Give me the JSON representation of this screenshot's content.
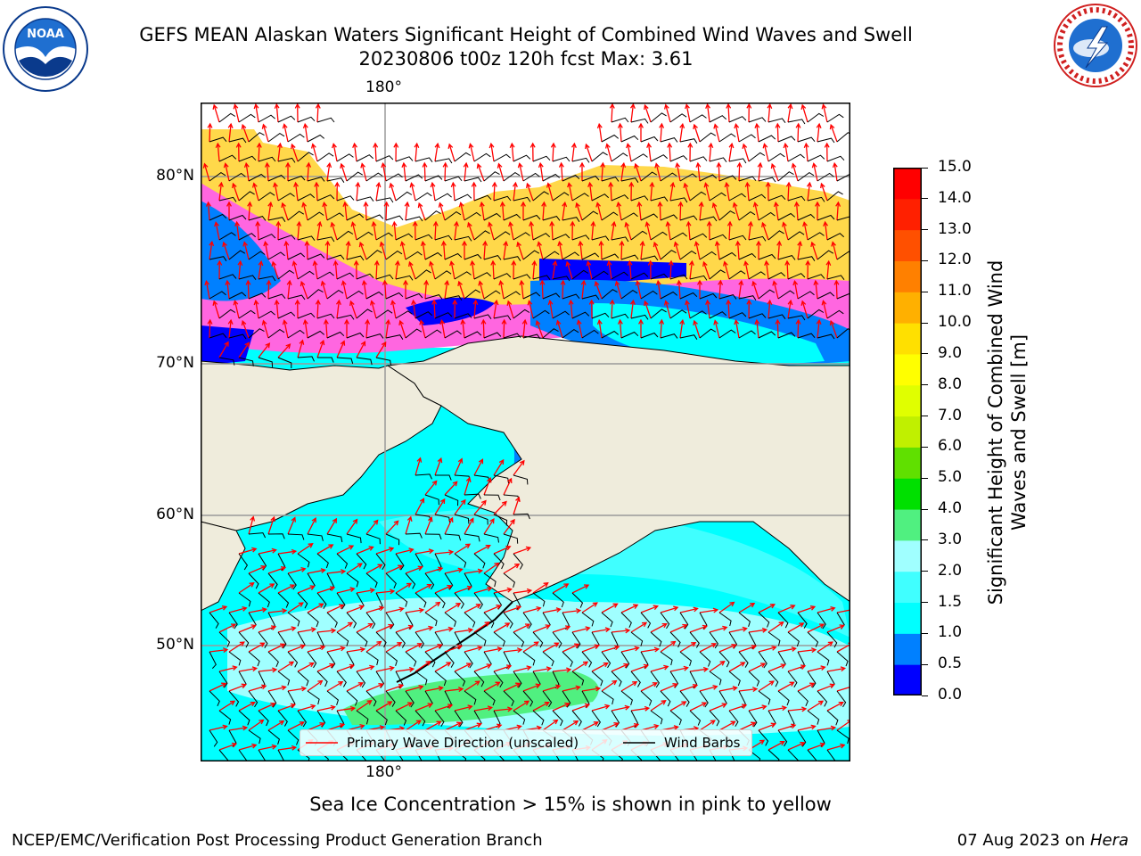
{
  "header": {
    "title_line1": "GEFS MEAN Alaskan Waters Significant Height of Combined Wind Waves and Swell",
    "title_line2": "20230806 t00z 120h fcst   Max: 3.61"
  },
  "logos": {
    "left": {
      "name": "noaa-logo",
      "text": "NOAA"
    },
    "right": {
      "name": "nws-logo",
      "text": "NATIONAL WEATHER SERVICE"
    }
  },
  "map": {
    "lon_labels": {
      "top": "180°",
      "bottom": "180°"
    },
    "lat_labels": [
      "80°N",
      "70°N",
      "60°N",
      "50°N"
    ],
    "colors": {
      "land": "#efecdc",
      "ocean": "#00ffff",
      "ice_pink": "#ff66e0",
      "ice_yellow": "#ffd84a"
    }
  },
  "legend": {
    "wave_label": "Primary Wave Direction (unscaled)",
    "wind_label": "Wind Barbs",
    "wave_color": "#ff0000",
    "wind_color": "#000000"
  },
  "colorbar": {
    "label": "Significant Height of Combined Wind Waves and Swell [m]",
    "ticks": [
      "0.0",
      "0.5",
      "1.0",
      "1.5",
      "2.0",
      "3.0",
      "4.0",
      "5.0",
      "6.0",
      "7.0",
      "8.0",
      "9.0",
      "10.0",
      "11.0",
      "12.0",
      "13.0",
      "14.0",
      "15.0"
    ],
    "colors": [
      "#0000ff",
      "#0080ff",
      "#00ffff",
      "#40ffff",
      "#a0ffff",
      "#50f080",
      "#00e000",
      "#60e000",
      "#c0f000",
      "#e0ff00",
      "#ffff00",
      "#ffe000",
      "#ffb000",
      "#ff8000",
      "#ff5000",
      "#ff2000",
      "#ff0000"
    ]
  },
  "note": "Sea Ice Concentration > 15% is shown in pink to yellow",
  "footer": {
    "left": "NCEP/EMC/Verification Post Processing Product Generation Branch",
    "right_date": "07 Aug 2023 on ",
    "right_host": "Hera"
  }
}
